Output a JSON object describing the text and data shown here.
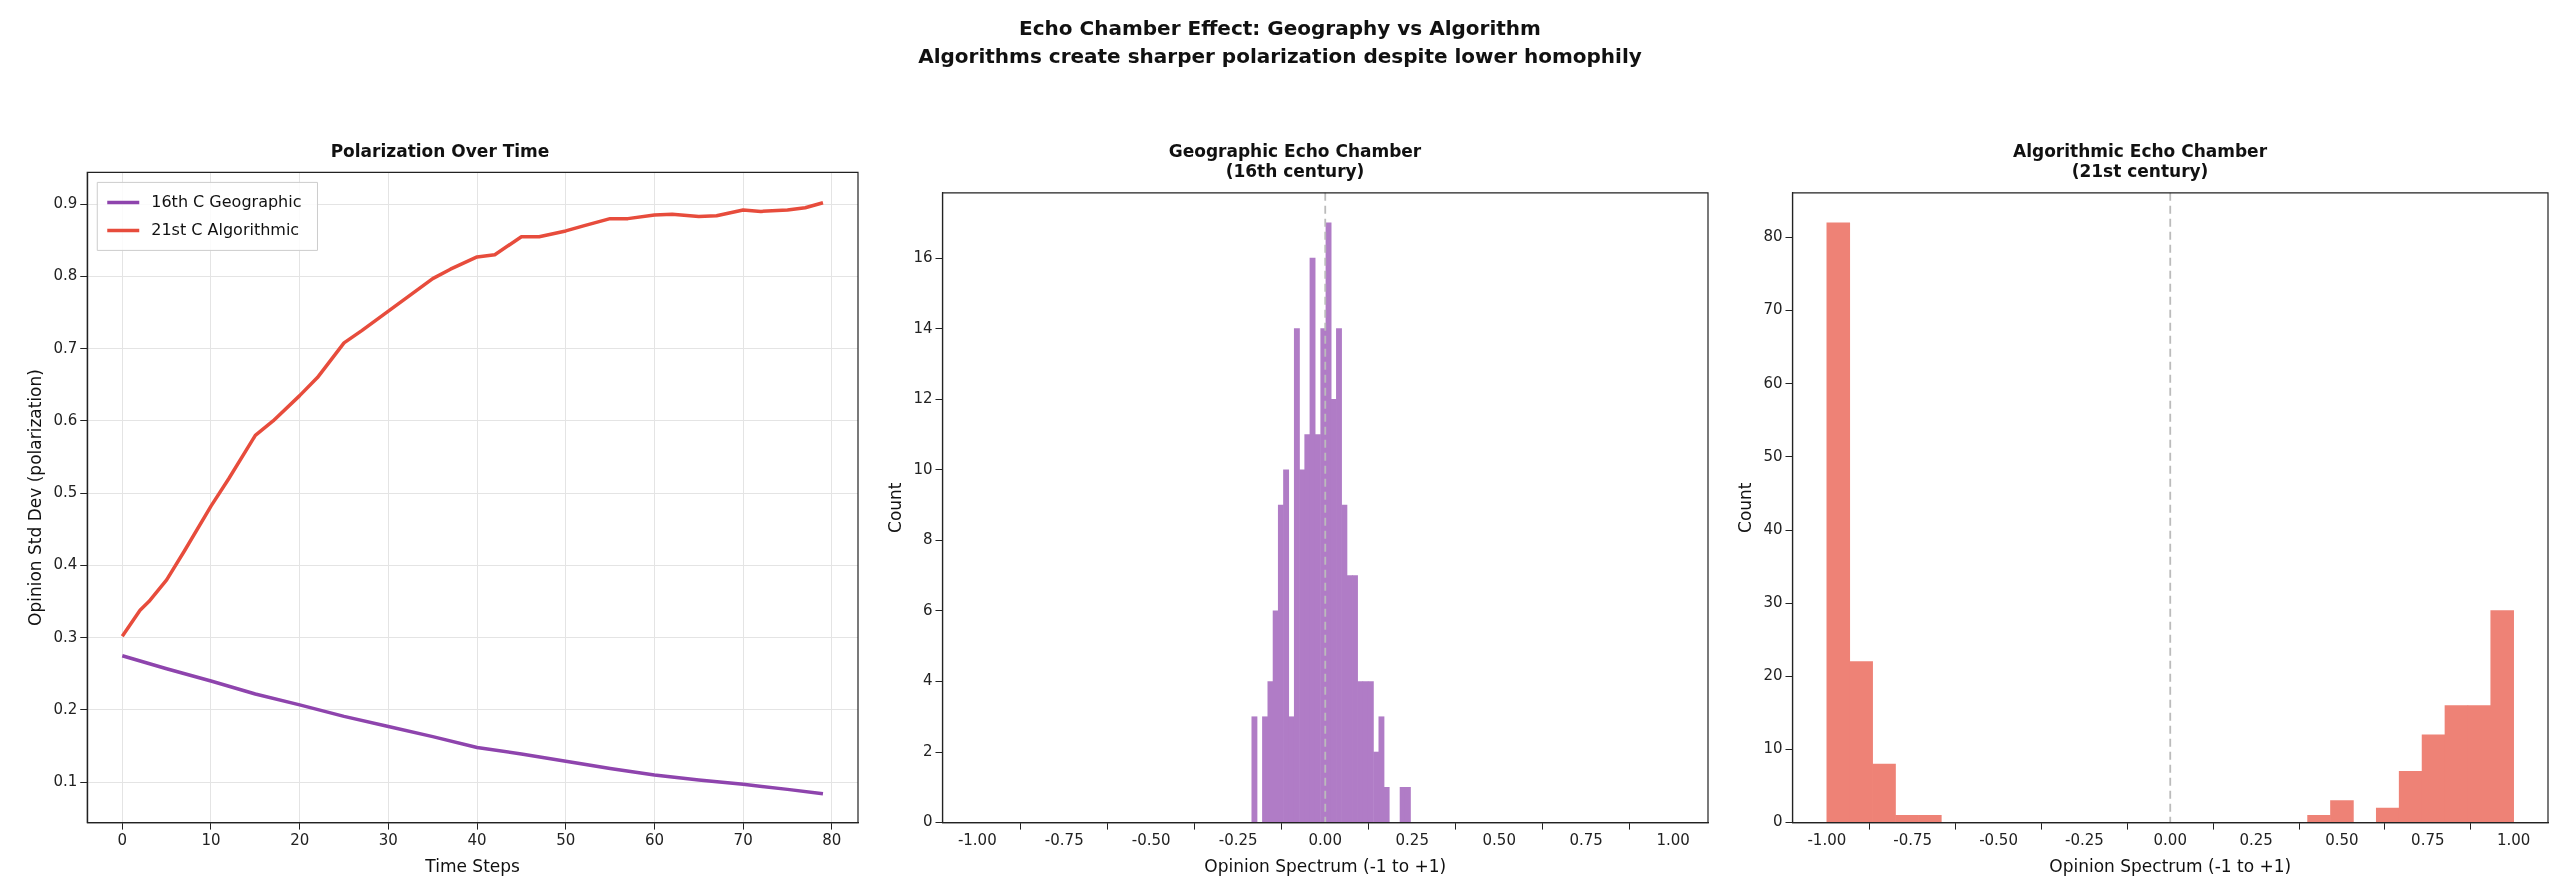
{
  "chart_data": [
    {
      "type": "line",
      "title": "Polarization Over Time",
      "annotations": [
        "Echo Chamber Effect: Geography vs Algorithm",
        "Algorithms create sharper polarization despite lower homophily"
      ],
      "xlabel": "Time Steps",
      "ylabel": "Opinion Std Dev (polarization)",
      "xlim": [
        -3.95,
        82.95
      ],
      "xticks": [
        0,
        10,
        20,
        30,
        40,
        50,
        60,
        70,
        80
      ],
      "ylim": [
        0.044,
        0.944
      ],
      "yticks": [
        0.1,
        0.2,
        0.3,
        0.4,
        0.5,
        0.6,
        0.7,
        0.8,
        0.9
      ],
      "grid": true,
      "legend": "top left",
      "marker": "none",
      "series": [
        {
          "name": "16th C Geographic",
          "color": "#8e44ad",
          "x": [
            0,
            5,
            10,
            15,
            20,
            25,
            30,
            35,
            40,
            45,
            50,
            55,
            60,
            65,
            70,
            75,
            79
          ],
          "values": [
            0.275,
            0.257,
            0.24,
            0.222,
            0.207,
            0.191,
            0.177,
            0.163,
            0.148,
            0.139,
            0.129,
            0.119,
            0.11,
            0.103,
            0.097,
            0.09,
            0.084
          ]
        },
        {
          "name": "21st C Algorithmic",
          "color": "#e74c3c",
          "x": [
            0,
            2,
            3,
            5,
            7,
            10,
            12,
            15,
            17,
            20,
            22,
            25,
            27,
            30,
            32,
            35,
            37,
            40,
            42,
            45,
            47,
            50,
            52,
            55,
            57,
            60,
            62,
            65,
            67,
            70,
            72,
            75,
            77,
            79
          ],
          "values": [
            0.302,
            0.338,
            0.35,
            0.38,
            0.42,
            0.482,
            0.52,
            0.58,
            0.6,
            0.635,
            0.66,
            0.708,
            0.725,
            0.752,
            0.77,
            0.797,
            0.81,
            0.827,
            0.83,
            0.855,
            0.855,
            0.863,
            0.87,
            0.88,
            0.88,
            0.885,
            0.886,
            0.883,
            0.884,
            0.892,
            0.89,
            0.892,
            0.895,
            0.902
          ]
        }
      ]
    },
    {
      "type": "histogram",
      "title": "Geographic Echo Chamber\n(16th century)",
      "xlabel": "Opinion Spectrum (-1 to +1)",
      "ylabel": "Count",
      "color": "#b07cc6",
      "xlim": [
        -1.1,
        1.1
      ],
      "xticks": [
        {
          "value": -1,
          "label": "-1.00"
        },
        {
          "value": -0.75,
          "label": "-0.75"
        },
        {
          "value": -0.5,
          "label": "-0.50"
        },
        {
          "value": -0.25,
          "label": "-0.25"
        },
        {
          "value": 0,
          "label": "0.00"
        },
        {
          "value": 0.25,
          "label": "0.25"
        },
        {
          "value": 0.5,
          "label": "0.50"
        },
        {
          "value": 0.75,
          "label": "0.75"
        },
        {
          "value": 1,
          "label": "1.00"
        }
      ],
      "ylim": [
        0,
        17.85
      ],
      "yticks": [
        0,
        2,
        4,
        6,
        8,
        10,
        12,
        14,
        16
      ],
      "bins": [
        -0.211,
        -0.196,
        -0.181,
        -0.165,
        -0.15,
        -0.135,
        -0.12,
        -0.105,
        -0.089,
        -0.074,
        -0.059,
        -0.044,
        -0.029,
        -0.013,
        0.002,
        0.017,
        0.032,
        0.047,
        0.063,
        0.078,
        0.093,
        0.108,
        0.123,
        0.139,
        0.154,
        0.169,
        0.184,
        0.199,
        0.215,
        0.23,
        0.245
      ],
      "values": [
        3,
        0,
        3,
        4,
        6,
        9,
        10,
        3,
        14,
        10,
        11,
        16,
        11,
        14,
        17,
        12,
        14,
        9,
        7,
        7,
        4,
        4,
        4,
        2,
        3,
        1,
        0,
        0,
        1,
        1
      ],
      "ref_lines": [
        {
          "axis": "x",
          "value": 0,
          "color": "#bbbbbb",
          "line_style": "dashed"
        }
      ]
    },
    {
      "type": "histogram",
      "title": "Algorithmic Echo Chamber\n(21st century)",
      "xlabel": "Opinion Spectrum (-1 to +1)",
      "ylabel": "Count",
      "color": "#ee8276",
      "xlim": [
        -1.1,
        1.1
      ],
      "xticks": [
        {
          "value": -1,
          "label": "-1.00"
        },
        {
          "value": -0.75,
          "label": "-0.75"
        },
        {
          "value": -0.5,
          "label": "-0.50"
        },
        {
          "value": -0.25,
          "label": "-0.25"
        },
        {
          "value": 0,
          "label": "0.00"
        },
        {
          "value": 0.25,
          "label": "0.25"
        },
        {
          "value": 0.5,
          "label": "0.50"
        },
        {
          "value": 0.75,
          "label": "0.75"
        },
        {
          "value": 1,
          "label": "1.00"
        }
      ],
      "ylim": [
        0,
        86.1
      ],
      "yticks": [
        0,
        10,
        20,
        30,
        40,
        50,
        60,
        70,
        80
      ],
      "bins": [
        -1,
        -0.9333,
        -0.8667,
        -0.8,
        -0.7333,
        -0.6667,
        -0.6,
        -0.5333,
        -0.4667,
        -0.4,
        -0.3333,
        -0.2667,
        -0.2,
        -0.1333,
        -0.0667,
        0,
        0.0667,
        0.1333,
        0.2,
        0.2667,
        0.3333,
        0.4,
        0.4667,
        0.5333,
        0.6,
        0.6667,
        0.7333,
        0.8,
        0.8667,
        0.9333,
        1
      ],
      "values": [
        82,
        22,
        8,
        1,
        1,
        0,
        0,
        0,
        0,
        0,
        0,
        0,
        0,
        0,
        0,
        0,
        0,
        0,
        0,
        0,
        0,
        1,
        3,
        0,
        2,
        7,
        12,
        16,
        16,
        29
      ],
      "ref_lines": [
        {
          "axis": "x",
          "value": 0,
          "color": "#bbbbbb",
          "line_style": "dashed"
        }
      ]
    }
  ]
}
